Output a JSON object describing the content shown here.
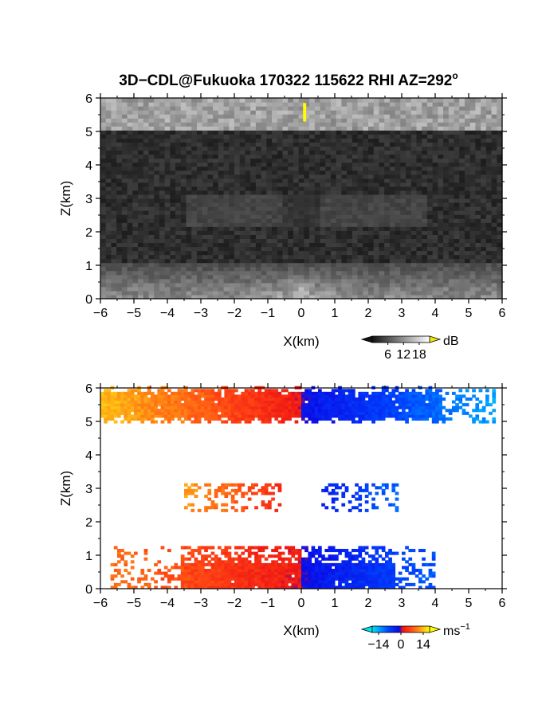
{
  "title": "3D−CDL@Fukuoka 170322 115622 RHI AZ=292",
  "title_superscript": "o",
  "chart_data": [
    {
      "type": "heatmap",
      "panel": "reflectivity",
      "xlabel": "X(km)",
      "ylabel": "Z(km)",
      "xlim": [
        -6,
        6
      ],
      "ylim": [
        0,
        6
      ],
      "xticks": [
        "−6",
        "−5",
        "−4",
        "−3",
        "−2",
        "−1",
        "0",
        "1",
        "2",
        "3",
        "4",
        "5",
        "6"
      ],
      "yticks": [
        "0",
        "1",
        "2",
        "3",
        "4",
        "5",
        "6"
      ],
      "colormap": "grayscale",
      "colorbar": {
        "label": "dB",
        "ticks": [
          "6",
          "12",
          "18"
        ],
        "tick_values": [
          6,
          12,
          18
        ],
        "range": [
          0,
          22
        ],
        "over_color": "#f2e600"
      },
      "layers": [
        {
          "x": [
            -6,
            6
          ],
          "z": [
            5.1,
            5.95
          ],
          "level_db": 14
        },
        {
          "x": [
            -3.5,
            3.8
          ],
          "z": [
            2.2,
            3.1
          ],
          "level_db": 5
        },
        {
          "x": [
            -6,
            6
          ],
          "z": [
            0,
            1.1
          ],
          "level_db": 12
        }
      ],
      "features": [
        {
          "kind": "bright-spike",
          "x": 0.1,
          "z": [
            5.3,
            5.85
          ],
          "color": "#ffff00"
        }
      ]
    },
    {
      "type": "heatmap",
      "panel": "doppler-velocity",
      "xlabel": "X(km)",
      "ylabel": "Z(km)",
      "xlim": [
        -6,
        6
      ],
      "ylim": [
        0,
        6
      ],
      "xticks": [
        "−6",
        "−5",
        "−4",
        "−3",
        "−2",
        "−1",
        "0",
        "1",
        "2",
        "3",
        "4",
        "5",
        "6"
      ],
      "yticks": [
        "0",
        "1",
        "2",
        "3",
        "4",
        "5",
        "6"
      ],
      "colormap": "diverging-cyan-blue-red-yellow",
      "colorbar": {
        "label": "ms",
        "label_superscript": "−1",
        "ticks": [
          "−14",
          "0",
          "14"
        ],
        "tick_values": [
          -14,
          0,
          14
        ],
        "range": [
          -18,
          18
        ]
      },
      "layers": [
        {
          "x": [
            -6,
            5.8
          ],
          "z": [
            4.95,
            6.0
          ],
          "velocity_left_ms": 14,
          "velocity_right_ms": -14
        },
        {
          "x": [
            -3.5,
            2.9
          ],
          "z": [
            2.3,
            3.15
          ],
          "velocity_left_ms": 12,
          "velocity_right_ms": -10
        },
        {
          "x": [
            -5.7,
            4.0
          ],
          "z": [
            0,
            1.2
          ],
          "velocity_left_ms": 9,
          "velocity_right_ms": -9
        }
      ]
    }
  ]
}
